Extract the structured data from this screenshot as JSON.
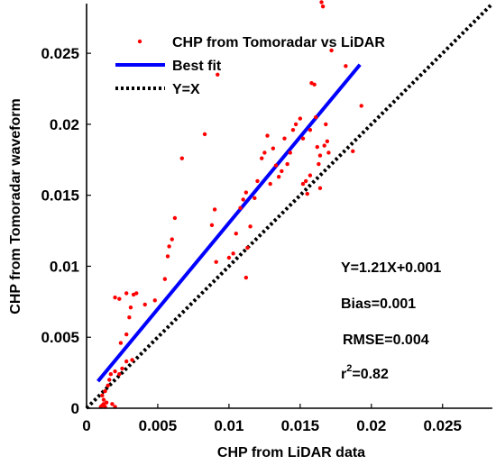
{
  "chart_data": {
    "type": "scatter",
    "title": "",
    "xlabel": "CHP from LiDAR data",
    "ylabel": "CHP from Tomoradar waveform",
    "xlim": [
      0,
      0.0285
    ],
    "ylim": [
      0,
      0.0285
    ],
    "xticks": [
      0,
      0.005,
      0.01,
      0.015,
      0.02,
      0.025
    ],
    "yticks": [
      0,
      0.005,
      0.01,
      0.015,
      0.02,
      0.025
    ],
    "xtick_labels": [
      "0",
      "0.005",
      "0.01",
      "0.015",
      "0.02",
      "0.025"
    ],
    "ytick_labels": [
      "0",
      "0.005",
      "0.01",
      "0.015",
      "0.02",
      "0.025"
    ],
    "grid": false,
    "legend_position": "top-left",
    "colors": {
      "scatter": "#ff0000",
      "fit": "#0000ff",
      "identity": "#000000"
    },
    "series": [
      {
        "name": "CHP from Tomoradar vs LiDAR",
        "kind": "scatter",
        "points": [
          [
            0.001,
            0.0001
          ],
          [
            0.0011,
            0.0002
          ],
          [
            0.0012,
            0.0003
          ],
          [
            0.0013,
            0.0001
          ],
          [
            0.0014,
            0.0004
          ],
          [
            0.0012,
            0.0006
          ],
          [
            0.0011,
            0.0009
          ],
          [
            0.0013,
            0.0012
          ],
          [
            0.0015,
            0.0016
          ],
          [
            0.0016,
            0.002
          ],
          [
            0.0018,
            0.0003
          ],
          [
            0.002,
            0.0001
          ],
          [
            0.0017,
            0.0024
          ],
          [
            0.002,
            0.0026
          ],
          [
            0.0023,
            0.0024
          ],
          [
            0.0025,
            0.0028
          ],
          [
            0.0028,
            0.0033
          ],
          [
            0.0032,
            0.0034
          ],
          [
            0.0024,
            0.0046
          ],
          [
            0.0028,
            0.0052
          ],
          [
            0.003,
            0.0064
          ],
          [
            0.0031,
            0.0071
          ],
          [
            0.002,
            0.0078
          ],
          [
            0.0023,
            0.0077
          ],
          [
            0.0028,
            0.0081
          ],
          [
            0.0033,
            0.008
          ],
          [
            0.0035,
            0.0081
          ],
          [
            0.0041,
            0.0073
          ],
          [
            0.0048,
            0.0076
          ],
          [
            0.0055,
            0.0091
          ],
          [
            0.0057,
            0.0107
          ],
          [
            0.0058,
            0.0114
          ],
          [
            0.006,
            0.0119
          ],
          [
            0.0062,
            0.0134
          ],
          [
            0.0067,
            0.0176
          ],
          [
            0.0083,
            0.0193
          ],
          [
            0.0088,
            0.0129
          ],
          [
            0.009,
            0.014
          ],
          [
            0.0091,
            0.0103
          ],
          [
            0.0092,
            0.0235
          ],
          [
            0.01,
            0.0106
          ],
          [
            0.0103,
            0.0109
          ],
          [
            0.0105,
            0.0123
          ],
          [
            0.0108,
            0.0141
          ],
          [
            0.011,
            0.0147
          ],
          [
            0.0112,
            0.0152
          ],
          [
            0.0112,
            0.0092
          ],
          [
            0.0113,
            0.0113
          ],
          [
            0.0115,
            0.0128
          ],
          [
            0.0118,
            0.0148
          ],
          [
            0.012,
            0.016
          ],
          [
            0.0123,
            0.0176
          ],
          [
            0.0125,
            0.018
          ],
          [
            0.0127,
            0.0192
          ],
          [
            0.0129,
            0.0158
          ],
          [
            0.0131,
            0.0183
          ],
          [
            0.0133,
            0.0171
          ],
          [
            0.0135,
            0.0163
          ],
          [
            0.0137,
            0.0167
          ],
          [
            0.0139,
            0.019
          ],
          [
            0.0141,
            0.0172
          ],
          [
            0.0143,
            0.018
          ],
          [
            0.0145,
            0.0196
          ],
          [
            0.0147,
            0.02
          ],
          [
            0.015,
            0.0204
          ],
          [
            0.0152,
            0.019
          ],
          [
            0.0152,
            0.0158
          ],
          [
            0.0154,
            0.016
          ],
          [
            0.0155,
            0.0151
          ],
          [
            0.0157,
            0.0164
          ],
          [
            0.0157,
            0.0196
          ],
          [
            0.0158,
            0.0229
          ],
          [
            0.016,
            0.0228
          ],
          [
            0.0161,
            0.0205
          ],
          [
            0.0162,
            0.0184
          ],
          [
            0.0163,
            0.0172
          ],
          [
            0.0164,
            0.0178
          ],
          [
            0.0164,
            0.0155
          ],
          [
            0.0165,
            0.0286
          ],
          [
            0.0166,
            0.0283
          ],
          [
            0.0167,
            0.0185
          ],
          [
            0.0168,
            0.02
          ],
          [
            0.0169,
            0.0188
          ],
          [
            0.017,
            0.018
          ],
          [
            0.0172,
            0.0252
          ],
          [
            0.0182,
            0.0241
          ],
          [
            0.0187,
            0.0181
          ],
          [
            0.0193,
            0.0213
          ]
        ]
      },
      {
        "name": "Best fit",
        "kind": "line",
        "style": "solid",
        "points": [
          [
            0.0008,
            0.0019
          ],
          [
            0.0192,
            0.0242
          ]
        ]
      },
      {
        "name": "Y=X",
        "kind": "line",
        "style": "dotted",
        "points": [
          [
            0,
            0
          ],
          [
            0.0285,
            0.0285
          ]
        ]
      }
    ],
    "annotations": [
      {
        "text": "Y=1.21X+0.001"
      },
      {
        "text": "Bias=0.001"
      },
      {
        "text": "RMSE=0.004"
      },
      {
        "text": "r",
        "sup": "2",
        "rest": "=0.82"
      }
    ]
  }
}
